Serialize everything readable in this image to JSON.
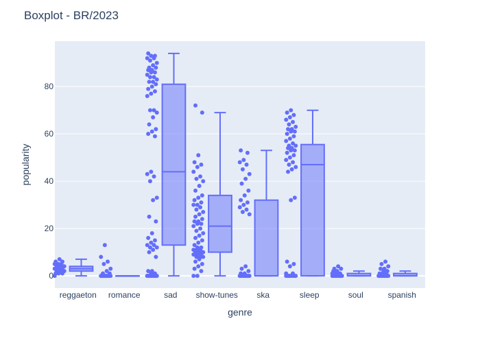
{
  "chart_data": {
    "type": "box",
    "title": "Boxplot - BR/2023",
    "xlabel": "genre",
    "ylabel": "popularity",
    "ylim": [
      -5.2,
      99.2
    ],
    "yticks": [
      0,
      20,
      40,
      60,
      80
    ],
    "categories": [
      "reggaeton",
      "romance",
      "sad",
      "show-tunes",
      "ska",
      "sleep",
      "soul",
      "spanish"
    ],
    "colors": {
      "box_line": "#636efa",
      "box_fill": "rgba(99,110,250,0.5)",
      "plot_bg": "#e5ecf6",
      "grid": "#ffffff",
      "text": "#2a3f5f"
    },
    "boxes": [
      {
        "genre": "reggaeton",
        "min": 0,
        "q1": 2,
        "median": 3,
        "q3": 4,
        "max": 7,
        "points": [
          0,
          1,
          1,
          1,
          2,
          2,
          2,
          2,
          2,
          3,
          3,
          3,
          3,
          3,
          3,
          3,
          4,
          4,
          4,
          4,
          4,
          5,
          5,
          5,
          6,
          6,
          7
        ]
      },
      {
        "genre": "romance",
        "min": 0,
        "q1": 0,
        "median": 0,
        "q3": 0,
        "max": 0,
        "points": [
          0,
          0,
          0,
          0,
          0,
          0,
          0,
          0,
          0,
          0,
          0,
          0,
          0,
          0,
          0,
          0,
          1,
          1,
          2,
          3,
          5,
          6,
          8,
          13
        ]
      },
      {
        "genre": "sad",
        "min": 0,
        "q1": 13,
        "median": 44,
        "q3": 81,
        "max": 94,
        "points": [
          0,
          0,
          0,
          0,
          0,
          0,
          0,
          0,
          0,
          0,
          0,
          0,
          1,
          1,
          2,
          2,
          8,
          10,
          11,
          12,
          12,
          13,
          13,
          14,
          15,
          16,
          18,
          23,
          25,
          32,
          33,
          40,
          42,
          43,
          44,
          59,
          60,
          61,
          62,
          64,
          67,
          69,
          70,
          70,
          76,
          77,
          78,
          79,
          80,
          81,
          82,
          82,
          83,
          84,
          84,
          85,
          86,
          86,
          87,
          87,
          88,
          88,
          89,
          90,
          91,
          92,
          92,
          93,
          93,
          94
        ]
      },
      {
        "genre": "show-tunes",
        "min": 0,
        "q1": 10,
        "median": 21,
        "q3": 34,
        "max": 69,
        "points": [
          0,
          0,
          2,
          3,
          4,
          5,
          6,
          7,
          8,
          8,
          8,
          9,
          9,
          9,
          9,
          10,
          10,
          10,
          10,
          10,
          11,
          11,
          11,
          12,
          12,
          13,
          14,
          15,
          16,
          17,
          18,
          19,
          20,
          21,
          22,
          22,
          23,
          23,
          24,
          25,
          26,
          27,
          28,
          29,
          30,
          30,
          31,
          32,
          33,
          34,
          36,
          38,
          40,
          41,
          42,
          44,
          46,
          47,
          48,
          51,
          69,
          72
        ]
      },
      {
        "genre": "ska",
        "min": 0,
        "q1": 0,
        "median": 0,
        "q3": 32,
        "max": 53,
        "points": [
          0,
          0,
          0,
          0,
          0,
          0,
          0,
          0,
          0,
          0,
          0,
          0,
          0,
          0,
          1,
          1,
          2,
          3,
          4,
          26,
          27,
          28,
          29,
          30,
          31,
          32,
          34,
          36,
          39,
          41,
          43,
          45,
          47,
          48,
          49,
          52,
          53
        ]
      },
      {
        "genre": "sleep",
        "min": 0,
        "q1": 0,
        "median": 47,
        "q3": 55.5,
        "max": 70,
        "points": [
          0,
          0,
          0,
          0,
          0,
          0,
          0,
          0,
          0,
          0,
          1,
          1,
          4,
          5,
          6,
          32,
          33,
          44,
          45,
          46,
          47,
          48,
          49,
          50,
          51,
          52,
          53,
          53,
          54,
          54,
          55,
          55,
          56,
          57,
          58,
          59,
          60,
          61,
          61,
          62,
          62,
          63,
          64,
          65,
          66,
          67,
          68,
          69,
          70
        ]
      },
      {
        "genre": "soul",
        "min": 0,
        "q1": 0,
        "median": 0,
        "q3": 1,
        "max": 2,
        "points": [
          0,
          0,
          0,
          0,
          0,
          0,
          0,
          0,
          0,
          0,
          0,
          1,
          1,
          1,
          2,
          2,
          3,
          3,
          4
        ]
      },
      {
        "genre": "spanish",
        "min": 0,
        "q1": 0,
        "median": 0,
        "q3": 1,
        "max": 2,
        "points": [
          0,
          0,
          0,
          0,
          0,
          0,
          0,
          0,
          0,
          0,
          0,
          0,
          1,
          1,
          1,
          2,
          2,
          3,
          3,
          4,
          5,
          6
        ]
      }
    ]
  }
}
